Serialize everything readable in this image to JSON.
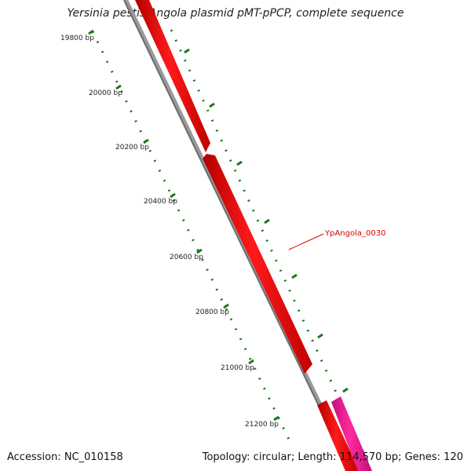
{
  "title": "Yersinia pestis Angola plasmid pMT-pPCP, complete sequence",
  "footer": {
    "accession": "Accession: NC_010158",
    "summary": "Topology: circular; Length: 114,570 bp; Genes: 120"
  },
  "ticks": [
    "19800 bp",
    "20000 bp",
    "20200 bp",
    "20400 bp",
    "20600 bp",
    "20800 bp",
    "21000 bp",
    "21200 bp"
  ],
  "genes": [
    {
      "label": "YpAngola_0030",
      "color": "#ff0000"
    }
  ],
  "colors": {
    "backbone": "#888888",
    "gene_forward": "#ff0000",
    "gene_other": "#ff1493",
    "tick_marks": "#1a7a1a",
    "label_text": "#dd0000"
  }
}
